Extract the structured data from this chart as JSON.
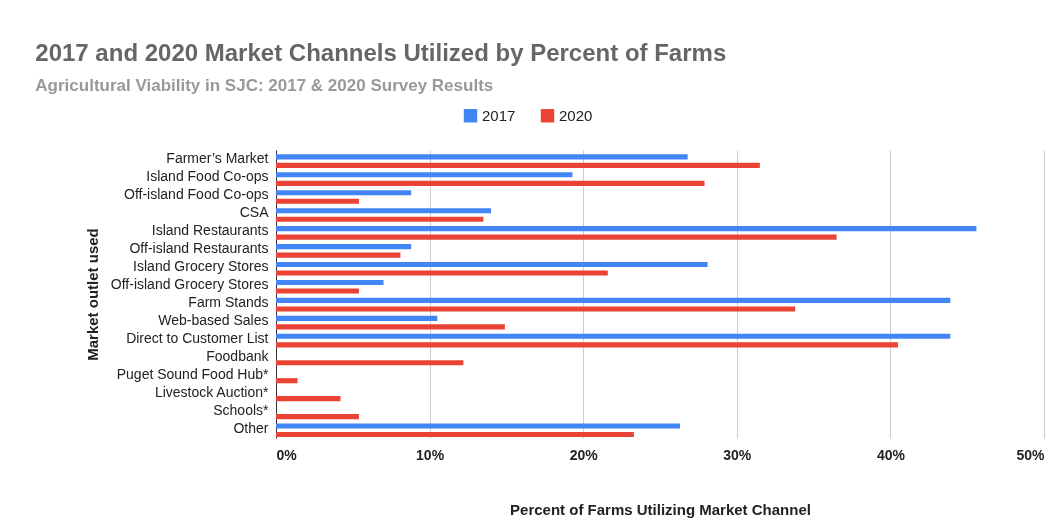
{
  "chart_data": {
    "type": "bar",
    "orientation": "horizontal",
    "title": "2017 and 2020 Market Channels Utilized by Percent of Farms",
    "subtitle": "Agricultural Viability in SJC: 2017 & 2020 Survey Results",
    "xlabel": "Percent of Farms Utilizing Market Channel",
    "ylabel": "Market outlet used",
    "categories": [
      "Farmer’s Market",
      "Island Food Co-ops",
      "Off-island Food Co-ops",
      "CSA",
      "Island Restaurants",
      "Off-island Restaurants",
      "Island Grocery Stores",
      "Off-island Grocery Stores",
      "Farm Stands",
      "Web-based Sales",
      "Direct to Customer List",
      "Foodbank",
      "Puget Sound Food Hub*",
      "Livestock Auction*",
      "Schools*",
      "Other"
    ],
    "series": [
      {
        "name": "2017",
        "color": "#4285f4",
        "values": [
          26.8,
          19.3,
          8.8,
          14.0,
          45.6,
          8.8,
          28.1,
          7.0,
          43.9,
          10.5,
          43.9,
          null,
          null,
          null,
          null,
          26.3
        ]
      },
      {
        "name": "2020",
        "color": "#ea4335",
        "values": [
          31.5,
          27.9,
          5.4,
          13.5,
          36.5,
          8.1,
          21.6,
          5.4,
          33.8,
          14.9,
          40.5,
          12.2,
          1.4,
          4.2,
          5.4,
          23.3
        ]
      }
    ],
    "xlim": [
      0,
      50
    ],
    "xticks": [
      {
        "value": 0,
        "label": "0%"
      },
      {
        "value": 10,
        "label": "10%"
      },
      {
        "value": 20,
        "label": "20%"
      },
      {
        "value": 30,
        "label": "30%"
      },
      {
        "value": 40,
        "label": "40%"
      },
      {
        "value": 50,
        "label": "50%"
      }
    ],
    "grid": "x",
    "legend": "top"
  }
}
